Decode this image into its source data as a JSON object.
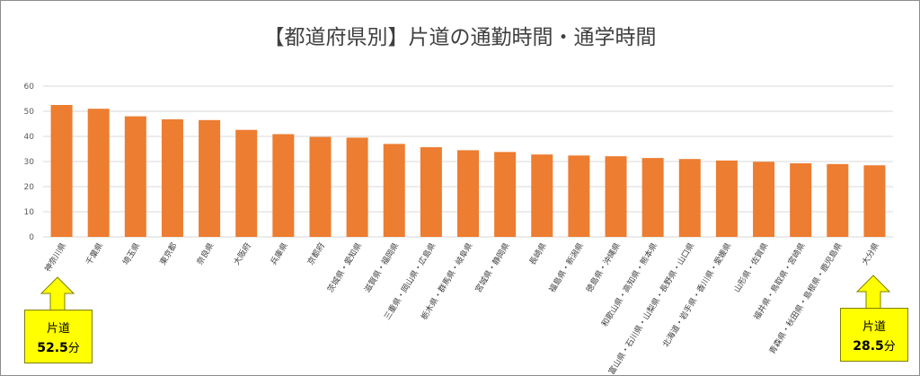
{
  "chart_data": {
    "type": "bar",
    "title": "【都道府県別】片道の通勤時間・通学時間",
    "categories": [
      "神奈川県",
      "千葉県",
      "埼玉県",
      "東京都",
      "奈良県",
      "大阪府",
      "兵庫県",
      "京都府",
      "茨城県・愛知県",
      "滋賀県・福岡県",
      "三重県・岡山県・広島県",
      "栃木県・群馬県・岐阜県",
      "宮城県・静岡県",
      "長崎県",
      "福島県・新潟県",
      "徳島県・沖縄県",
      "和歌山県・高知県・熊本県",
      "富山県・石川県・山梨県・長野県・山口県",
      "北海道・岩手県・香川県・愛媛県",
      "山形県・佐賀県",
      "福井県・鳥取県・宮崎県",
      "青森県・秋田県・島根県・鹿児島県",
      "大分県"
    ],
    "values": [
      52.5,
      51,
      48,
      46.8,
      46.5,
      42.6,
      40.9,
      39.8,
      39.5,
      37,
      35.7,
      34.5,
      33.8,
      32.8,
      32.4,
      32.1,
      31.4,
      31,
      30.4,
      29.9,
      29.3,
      29,
      28.5
    ],
    "ylim": [
      0,
      60
    ],
    "yticks": [
      0,
      10,
      20,
      30,
      40,
      50,
      60
    ],
    "grid": true,
    "bar_color": "#ed7d31",
    "grid_color": "#d9d9d9"
  },
  "callouts": {
    "left": {
      "label": "片道",
      "value": "52.5",
      "unit": "分"
    },
    "right": {
      "label": "片道",
      "value": "28.5",
      "unit": "分"
    },
    "color": "#ffff00"
  }
}
